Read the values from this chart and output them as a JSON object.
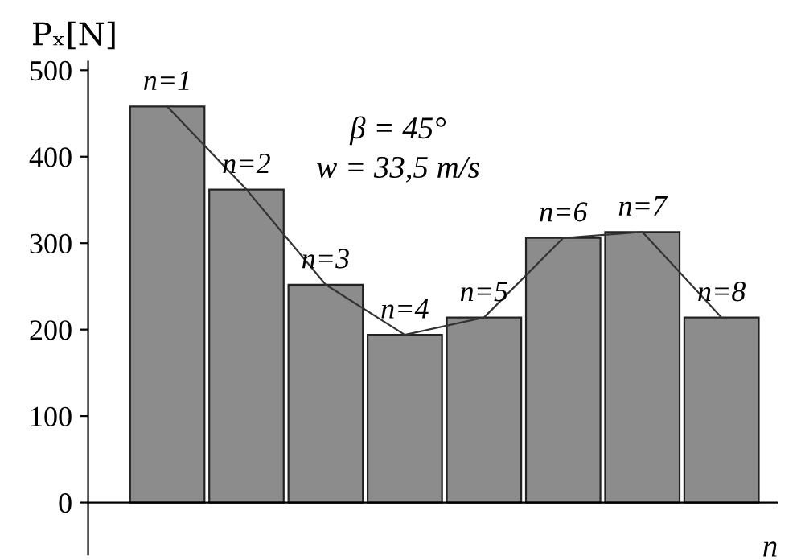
{
  "chart_data": {
    "type": "bar",
    "ylabel": "Pₓ[N]",
    "xlabel": "n",
    "categories": [
      "n=1",
      "n=2",
      "n=3",
      "n=4",
      "n=5",
      "n=6",
      "n=7",
      "n=8"
    ],
    "series": [
      {
        "color": "#8c8c8c",
        "values": [
          458,
          362,
          252,
          194,
          214,
          306,
          313,
          214
        ]
      },
      {
        "type": "line",
        "color": "#333333",
        "values": [
          458,
          362,
          252,
          194,
          214,
          306,
          313,
          214
        ]
      }
    ],
    "ylim": [
      -60,
      510
    ],
    "yticks": [
      0,
      100,
      200,
      300,
      400,
      500
    ],
    "legend": false,
    "marker": "none",
    "annotations": [
      "β = 45°",
      "w = 33,5 m/s"
    ]
  }
}
